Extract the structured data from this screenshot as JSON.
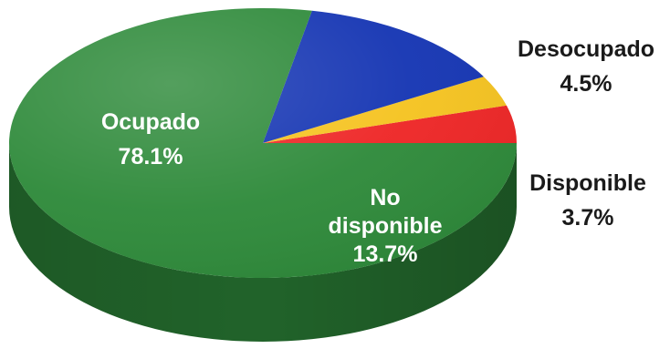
{
  "chart_data": {
    "type": "pie",
    "style": "3d",
    "start_angle_deg": 0,
    "direction": "counterclockwise-from-right-in-drawing-order",
    "slices": [
      {
        "name": "Desocupado",
        "value": 4.5,
        "label_value": "4.5%",
        "color": "#ee2626",
        "label_color": "#1a1a1a",
        "label_placement": "outside"
      },
      {
        "name": "Disponible",
        "value": 3.7,
        "label_value": "3.7%",
        "color": "#f5c320",
        "label_color": "#1a1a1a",
        "label_placement": "outside"
      },
      {
        "name": "No disponible",
        "label_lines": [
          "No",
          "disponible"
        ],
        "value": 13.7,
        "label_value": "13.7%",
        "color": "#1535b3",
        "label_color": "#ffffff",
        "label_placement": "inside"
      },
      {
        "name": "Ocupado",
        "value": 78.1,
        "label_value": "78.1%",
        "color": "#2e8a3a",
        "label_color": "#ffffff",
        "label_placement": "inside"
      }
    ]
  }
}
